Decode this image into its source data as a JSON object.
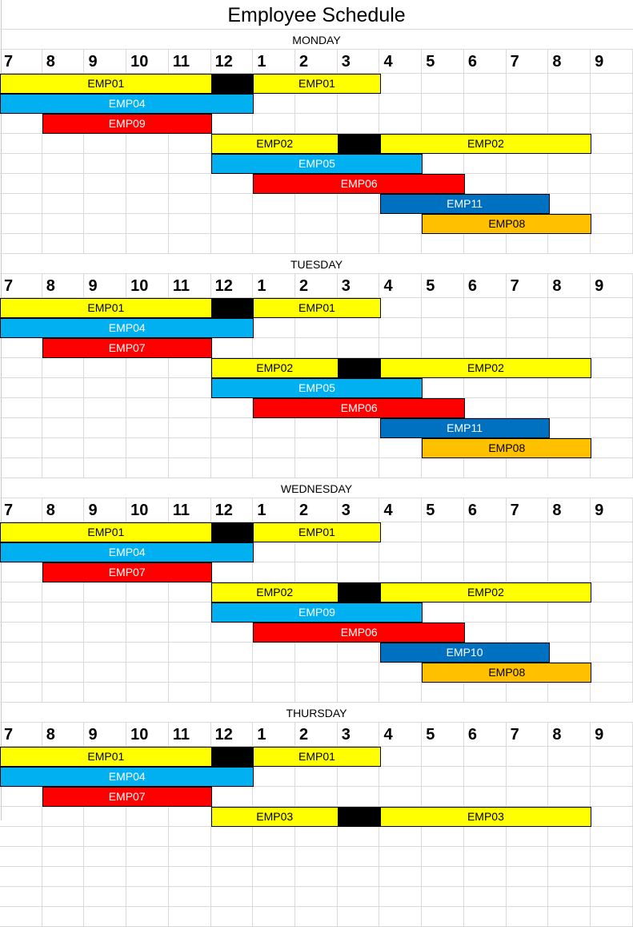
{
  "title": "Employee Schedule",
  "hours": [
    "7",
    "8",
    "9",
    "10",
    "11",
    "12",
    "1",
    "2",
    "3",
    "4",
    "5",
    "6",
    "7",
    "8",
    "9"
  ],
  "colors": {
    "yellow": "#ffff00",
    "black": "#000000",
    "lightblue": "#00b0f0",
    "red": "#ff0000",
    "blue": "#0070c0",
    "orange": "#ffc000"
  },
  "days": [
    {
      "name": "MONDAY",
      "rows": [
        [
          {
            "label": "EMP01",
            "start": 7,
            "end": 12,
            "color": "yellow"
          },
          {
            "label": "",
            "start": 12,
            "end": 13,
            "color": "black"
          },
          {
            "label": "EMP01",
            "start": 13,
            "end": 16,
            "color": "yellow"
          }
        ],
        [
          {
            "label": "EMP04",
            "start": 7,
            "end": 13,
            "color": "lightblue"
          }
        ],
        [
          {
            "label": "EMP09",
            "start": 8,
            "end": 12,
            "color": "red"
          }
        ],
        [
          {
            "label": "EMP02",
            "start": 12,
            "end": 15,
            "color": "yellow"
          },
          {
            "label": "",
            "start": 15,
            "end": 16,
            "color": "black"
          },
          {
            "label": "EMP02",
            "start": 16,
            "end": 21,
            "color": "yellow"
          }
        ],
        [
          {
            "label": "EMP05",
            "start": 12,
            "end": 17,
            "color": "lightblue"
          }
        ],
        [
          {
            "label": "EMP06",
            "start": 13,
            "end": 18,
            "color": "red"
          }
        ],
        [
          {
            "label": "EMP11",
            "start": 16,
            "end": 20,
            "color": "blue"
          }
        ],
        [
          {
            "label": "EMP08",
            "start": 17,
            "end": 21,
            "color": "orange"
          }
        ],
        []
      ]
    },
    {
      "name": "TUESDAY",
      "rows": [
        [
          {
            "label": "EMP01",
            "start": 7,
            "end": 12,
            "color": "yellow"
          },
          {
            "label": "",
            "start": 12,
            "end": 13,
            "color": "black"
          },
          {
            "label": "EMP01",
            "start": 13,
            "end": 16,
            "color": "yellow"
          }
        ],
        [
          {
            "label": "EMP04",
            "start": 7,
            "end": 13,
            "color": "lightblue"
          }
        ],
        [
          {
            "label": "EMP07",
            "start": 8,
            "end": 12,
            "color": "red"
          }
        ],
        [
          {
            "label": "EMP02",
            "start": 12,
            "end": 15,
            "color": "yellow"
          },
          {
            "label": "",
            "start": 15,
            "end": 16,
            "color": "black"
          },
          {
            "label": "EMP02",
            "start": 16,
            "end": 21,
            "color": "yellow"
          }
        ],
        [
          {
            "label": "EMP05",
            "start": 12,
            "end": 17,
            "color": "lightblue"
          }
        ],
        [
          {
            "label": "EMP06",
            "start": 13,
            "end": 18,
            "color": "red"
          }
        ],
        [
          {
            "label": "EMP11",
            "start": 16,
            "end": 20,
            "color": "blue"
          }
        ],
        [
          {
            "label": "EMP08",
            "start": 17,
            "end": 21,
            "color": "orange"
          }
        ],
        []
      ]
    },
    {
      "name": "WEDNESDAY",
      "rows": [
        [
          {
            "label": "EMP01",
            "start": 7,
            "end": 12,
            "color": "yellow"
          },
          {
            "label": "",
            "start": 12,
            "end": 13,
            "color": "black"
          },
          {
            "label": "EMP01",
            "start": 13,
            "end": 16,
            "color": "yellow"
          }
        ],
        [
          {
            "label": "EMP04",
            "start": 7,
            "end": 13,
            "color": "lightblue"
          }
        ],
        [
          {
            "label": "EMP07",
            "start": 8,
            "end": 12,
            "color": "red"
          }
        ],
        [
          {
            "label": "EMP02",
            "start": 12,
            "end": 15,
            "color": "yellow"
          },
          {
            "label": "",
            "start": 15,
            "end": 16,
            "color": "black"
          },
          {
            "label": "EMP02",
            "start": 16,
            "end": 21,
            "color": "yellow"
          }
        ],
        [
          {
            "label": "EMP09",
            "start": 12,
            "end": 17,
            "color": "lightblue"
          }
        ],
        [
          {
            "label": "EMP06",
            "start": 13,
            "end": 18,
            "color": "red"
          }
        ],
        [
          {
            "label": "EMP10",
            "start": 16,
            "end": 20,
            "color": "blue"
          }
        ],
        [
          {
            "label": "EMP08",
            "start": 17,
            "end": 21,
            "color": "orange"
          }
        ],
        []
      ]
    },
    {
      "name": "THURSDAY",
      "rows": [
        [
          {
            "label": "EMP01",
            "start": 7,
            "end": 12,
            "color": "yellow"
          },
          {
            "label": "",
            "start": 12,
            "end": 13,
            "color": "black"
          },
          {
            "label": "EMP01",
            "start": 13,
            "end": 16,
            "color": "yellow"
          }
        ],
        [
          {
            "label": "EMP04",
            "start": 7,
            "end": 13,
            "color": "lightblue"
          }
        ],
        [
          {
            "label": "EMP07",
            "start": 8,
            "end": 12,
            "color": "red"
          }
        ],
        [
          {
            "label": "EMP03",
            "start": 12,
            "end": 15,
            "color": "yellow"
          },
          {
            "label": "",
            "start": 15,
            "end": 16,
            "color": "black"
          },
          {
            "label": "EMP03",
            "start": 16,
            "end": 21,
            "color": "yellow"
          }
        ]
      ]
    }
  ]
}
